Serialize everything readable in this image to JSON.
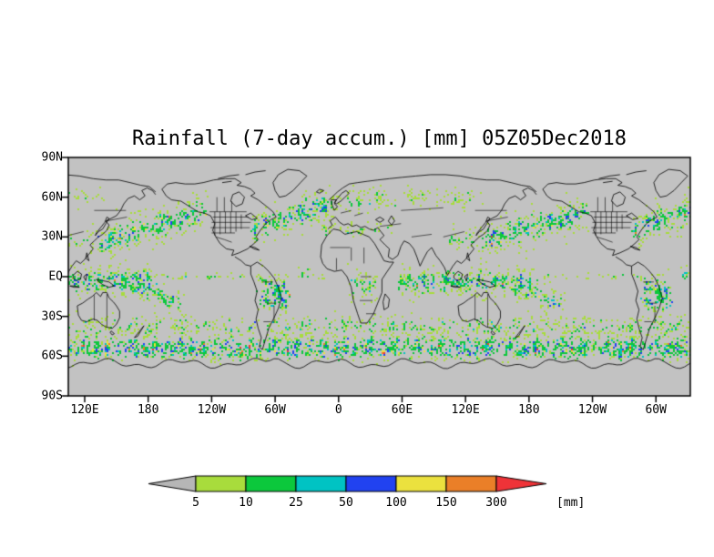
{
  "title": "Rainfall (7-day accum.) [mm] 05Z05Dec2018",
  "axes": {
    "lat_tick_labels": [
      "90N",
      "60N",
      "30N",
      "EQ",
      "30S",
      "60S",
      "90S"
    ],
    "lat_tick_values": [
      90,
      60,
      30,
      0,
      -30,
      -60,
      -90
    ],
    "lon_tick_labels": [
      "120E",
      "180",
      "120W",
      "60W",
      "0",
      "60E",
      "120E",
      "180",
      "120W",
      "60W"
    ],
    "lon_tick_deg": [
      120,
      180,
      240,
      300,
      360,
      420,
      480,
      540,
      600,
      660
    ]
  },
  "legend": {
    "unit": "[mm]",
    "tick_labels": [
      "5",
      "10",
      "25",
      "50",
      "100",
      "150",
      "300"
    ]
  },
  "chart_data": {
    "type": "heatmap",
    "title": "Rainfall (7-day accum.) [mm] 05Z05Dec2018",
    "variable": "Rainfall (7-day accumulation)",
    "unit": "mm",
    "valid_time": "05Z05Dec2018",
    "lat_range": [
      -90,
      90
    ],
    "lon_span_deg": 588,
    "colorbar_tick_values": [
      5,
      10,
      25,
      50,
      100,
      150,
      300
    ],
    "background_color": "#c2c2c2",
    "level_colors": {
      "below": "#b6b6b6",
      "bands": [
        "#a8dc3c",
        "#0cc83c",
        "#00c3c3",
        "#2142f0",
        "#ebe13e",
        "#ea7f28"
      ],
      "above": "#ef3338"
    },
    "approx_rain_bands": [
      {
        "name": "southern-ocean-storm-track",
        "lat": -54,
        "hw": 8.5,
        "lon": [
          0,
          360
        ],
        "d": 0.8,
        "i": 0.78
      },
      {
        "name": "south-midlatitude-patchy",
        "lat": -37,
        "hw": 6,
        "lon": [
          0,
          360
        ],
        "d": 0.4,
        "i": 0.45
      },
      {
        "name": "spcz",
        "lat": -12,
        "hw": 7,
        "lon": [
          150,
          215
        ],
        "d": 0.55,
        "i": 0.6,
        "tilt": -0.3
      },
      {
        "name": "itcz-indian-west-pacific",
        "lat": -4,
        "hw": 8,
        "lon": [
          55,
          190
        ],
        "d": 0.7,
        "i": 0.65
      },
      {
        "name": "equatorial-pacific-line",
        "lat": 0,
        "hw": 2,
        "lon": [
          190,
          285
        ],
        "d": 0.3,
        "i": 0.4
      },
      {
        "name": "itcz-atlantic",
        "lat": 2,
        "hw": 3.5,
        "lon": [
          318,
          352
        ],
        "d": 0.45,
        "i": 0.5
      },
      {
        "name": "amazon-south-america",
        "lat": -13,
        "hw": 12,
        "lon": [
          282,
          316
        ],
        "d": 0.75,
        "i": 0.72
      },
      {
        "name": "congo-africa",
        "lat": -7,
        "hw": 8,
        "lon": [
          8,
          38
        ],
        "d": 0.45,
        "i": 0.5
      },
      {
        "name": "north-pacific-storm-track",
        "lat": 38,
        "hw": 9,
        "lon": [
          132,
          238
        ],
        "d": 0.75,
        "i": 0.7,
        "tilt": 0.22
      },
      {
        "name": "north-atlantic-storm-track",
        "lat": 45,
        "hw": 9,
        "lon": [
          275,
          356
        ],
        "d": 0.7,
        "i": 0.65,
        "tilt": 0.28
      },
      {
        "name": "europe-scandinavia",
        "lat": 58,
        "hw": 7,
        "lon": [
          350,
          415
        ],
        "d": 0.45,
        "i": 0.4
      },
      {
        "name": "mediterranean-mideast",
        "lat": 35,
        "hw": 5,
        "lon": [
          342,
          415
        ],
        "d": 0.3,
        "i": 0.35
      },
      {
        "name": "east-asia",
        "lat": 28,
        "hw": 6,
        "lon": [
          100,
          135
        ],
        "d": 0.35,
        "i": 0.4
      },
      {
        "name": "siberia",
        "lat": 60,
        "hw": 6,
        "lon": [
          60,
          140
        ],
        "d": 0.3,
        "i": 0.3
      }
    ],
    "approx_dry_zones": [
      {
        "name": "east-pacific-dry",
        "lat": 17,
        "hw": 9,
        "lon": [
          195,
          268
        ],
        "s": 0.85
      },
      {
        "name": "southeast-pacific-dry",
        "lat": -23,
        "hw": 8,
        "lon": [
          245,
          288
        ],
        "s": 0.8
      },
      {
        "name": "sahara-dry",
        "lat": 22,
        "hw": 8,
        "lon": [
          345,
          415
        ],
        "s": 0.8
      },
      {
        "name": "south-atlantic-dry",
        "lat": -22,
        "hw": 7,
        "lon": [
          335,
          360
        ],
        "s": 0.6
      },
      {
        "name": "australia-interior-dry",
        "lat": -25,
        "hw": 5,
        "lon": [
          120,
          140
        ],
        "s": 0.5
      }
    ]
  }
}
